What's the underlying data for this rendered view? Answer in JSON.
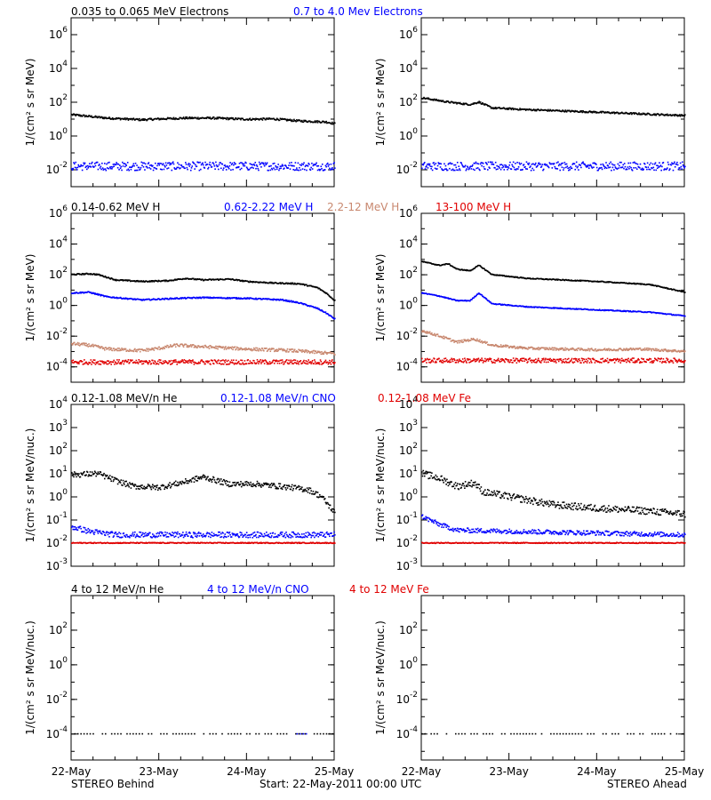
{
  "footer": {
    "left": "STEREO Behind",
    "center": "Start: 22-May-2011 00:00 UTC",
    "right": "STEREO Ahead"
  },
  "x_ticks": [
    "22-May",
    "23-May",
    "24-May",
    "25-May"
  ],
  "chart_data": [
    {
      "type": "scatter",
      "row": "electrons",
      "legend": [
        {
          "name": "0.035 to 0.065 MeV Electrons",
          "color": "#000000"
        },
        {
          "name": "0.7 to 4.0 Mev Electrons",
          "color": "#0000ff"
        }
      ],
      "ylabel": "1/(cm² s sr MeV)",
      "yscale": "log",
      "ylim_exp": [
        -3,
        7
      ],
      "ticks": [
        {
          "base": "10",
          "exp": "6",
          "e": 6
        },
        {
          "base": "10",
          "exp": "4",
          "e": 4
        },
        {
          "base": "10",
          "exp": "2",
          "e": 2
        },
        {
          "base": "10",
          "exp": "0",
          "e": 0
        },
        {
          "base": "10",
          "exp": "-2",
          "e": -2
        }
      ],
      "panels": [
        {
          "name": "STEREO Behind",
          "series": [
            {
              "color": "#000000",
              "points": [
                [
                  0,
                  1.25
                ],
                [
                  0.2,
                  1.15
                ],
                [
                  0.4,
                  1.05
                ],
                [
                  0.6,
                  1.0
                ],
                [
                  0.8,
                  0.95
                ],
                [
                  1.0,
                  1.0
                ],
                [
                  1.3,
                  1.05
                ],
                [
                  1.6,
                  1.05
                ],
                [
                  2.0,
                  0.98
                ],
                [
                  2.3,
                  1.0
                ],
                [
                  2.6,
                  0.88
                ],
                [
                  2.9,
                  0.82
                ],
                [
                  3.0,
                  0.72
                ]
              ],
              "jitter": 0.06
            },
            {
              "color": "#0000ff",
              "points": [
                [
                  0,
                  -1.8
                ],
                [
                  3,
                  -1.8
                ]
              ],
              "jitter": 0.25
            }
          ]
        },
        {
          "name": "STEREO Ahead",
          "series": [
            {
              "color": "#000000",
              "points": [
                [
                  0,
                  2.25
                ],
                [
                  0.3,
                  2.0
                ],
                [
                  0.55,
                  1.85
                ],
                [
                  0.65,
                  2.0
                ],
                [
                  0.8,
                  1.65
                ],
                [
                  1.2,
                  1.55
                ],
                [
                  2.0,
                  1.4
                ],
                [
                  3.0,
                  1.2
                ]
              ],
              "jitter": 0.05
            },
            {
              "color": "#0000ff",
              "points": [
                [
                  0,
                  -1.8
                ],
                [
                  3,
                  -1.8
                ]
              ],
              "jitter": 0.25
            }
          ]
        }
      ]
    },
    {
      "type": "scatter",
      "row": "protons",
      "legend": [
        {
          "name": "0.14-0.62 MeV H",
          "color": "#000000"
        },
        {
          "name": "0.62-2.22 MeV H",
          "color": "#0000ff"
        },
        {
          "name": "2.2-12 MeV H",
          "color": "#c8876e"
        },
        {
          "name": "13-100 MeV H",
          "color": "#e00000"
        }
      ],
      "ylabel": "1/(cm² s sr MeV)",
      "yscale": "log",
      "ylim_exp": [
        -5,
        6
      ],
      "ticks": [
        {
          "base": "10",
          "exp": "6",
          "e": 6
        },
        {
          "base": "10",
          "exp": "4",
          "e": 4
        },
        {
          "base": "10",
          "exp": "2",
          "e": 2
        },
        {
          "base": "10",
          "exp": "0",
          "e": 0
        },
        {
          "base": "10",
          "exp": "-2",
          "e": -2
        },
        {
          "base": "10",
          "exp": "-4",
          "e": -4
        }
      ],
      "panels": [
        {
          "name": "STEREO Behind",
          "series": [
            {
              "color": "#000000",
              "points": [
                [
                  0,
                  2.0
                ],
                [
                  0.2,
                  2.05
                ],
                [
                  0.3,
                  2.0
                ],
                [
                  0.5,
                  1.65
                ],
                [
                  0.8,
                  1.55
                ],
                [
                  1.1,
                  1.6
                ],
                [
                  1.3,
                  1.75
                ],
                [
                  1.5,
                  1.65
                ],
                [
                  1.8,
                  1.7
                ],
                [
                  2.0,
                  1.55
                ],
                [
                  2.3,
                  1.45
                ],
                [
                  2.6,
                  1.4
                ],
                [
                  2.8,
                  1.15
                ],
                [
                  2.9,
                  0.8
                ],
                [
                  3.0,
                  0.3
                ]
              ],
              "jitter": 0.04
            },
            {
              "color": "#0000ff",
              "points": [
                [
                  0,
                  0.8
                ],
                [
                  0.2,
                  0.85
                ],
                [
                  0.4,
                  0.55
                ],
                [
                  0.8,
                  0.35
                ],
                [
                  1.2,
                  0.45
                ],
                [
                  1.5,
                  0.5
                ],
                [
                  2.0,
                  0.45
                ],
                [
                  2.4,
                  0.35
                ],
                [
                  2.6,
                  0.15
                ],
                [
                  2.8,
                  -0.2
                ],
                [
                  2.9,
                  -0.5
                ],
                [
                  3.0,
                  -0.9
                ]
              ],
              "jitter": 0.04
            },
            {
              "color": "#c8876e",
              "points": [
                [
                  0,
                  -2.5
                ],
                [
                  0.2,
                  -2.6
                ],
                [
                  0.4,
                  -2.85
                ],
                [
                  0.8,
                  -2.95
                ],
                [
                  1.0,
                  -2.8
                ],
                [
                  1.2,
                  -2.6
                ],
                [
                  1.5,
                  -2.7
                ],
                [
                  2.0,
                  -2.85
                ],
                [
                  2.5,
                  -2.95
                ],
                [
                  3.0,
                  -3.15
                ]
              ],
              "jitter": 0.1
            },
            {
              "color": "#e00000",
              "points": [
                [
                  0,
                  -3.7
                ],
                [
                  3,
                  -3.7
                ]
              ],
              "jitter": 0.15
            }
          ]
        },
        {
          "name": "STEREO Ahead",
          "series": [
            {
              "color": "#000000",
              "points": [
                [
                  0,
                  2.85
                ],
                [
                  0.2,
                  2.6
                ],
                [
                  0.3,
                  2.7
                ],
                [
                  0.4,
                  2.35
                ],
                [
                  0.55,
                  2.25
                ],
                [
                  0.65,
                  2.6
                ],
                [
                  0.8,
                  2.0
                ],
                [
                  1.2,
                  1.75
                ],
                [
                  2.0,
                  1.55
                ],
                [
                  2.6,
                  1.35
                ],
                [
                  3.0,
                  0.85
                ]
              ],
              "jitter": 0.03
            },
            {
              "color": "#0000ff",
              "points": [
                [
                  0,
                  0.8
                ],
                [
                  0.2,
                  0.6
                ],
                [
                  0.4,
                  0.3
                ],
                [
                  0.55,
                  0.3
                ],
                [
                  0.65,
                  0.8
                ],
                [
                  0.8,
                  0.1
                ],
                [
                  1.2,
                  -0.1
                ],
                [
                  2.0,
                  -0.3
                ],
                [
                  2.6,
                  -0.45
                ],
                [
                  3.0,
                  -0.7
                ]
              ],
              "jitter": 0.03
            },
            {
              "color": "#c8876e",
              "points": [
                [
                  0,
                  -1.65
                ],
                [
                  0.2,
                  -2.0
                ],
                [
                  0.4,
                  -2.4
                ],
                [
                  0.6,
                  -2.2
                ],
                [
                  0.8,
                  -2.6
                ],
                [
                  1.2,
                  -2.8
                ],
                [
                  2.0,
                  -2.9
                ],
                [
                  2.5,
                  -2.85
                ],
                [
                  3.0,
                  -3.0
                ]
              ],
              "jitter": 0.08
            },
            {
              "color": "#e00000",
              "points": [
                [
                  0,
                  -3.6
                ],
                [
                  3,
                  -3.6
                ]
              ],
              "jitter": 0.15
            }
          ]
        }
      ]
    },
    {
      "type": "scatter",
      "row": "heavy-ions",
      "legend": [
        {
          "name": "0.12-1.08 MeV/n He",
          "color": "#000000"
        },
        {
          "name": "0.12-1.08 MeV/n CNO",
          "color": "#0000ff"
        },
        {
          "name": "0.12-1.08 MeV Fe",
          "color": "#e00000"
        }
      ],
      "ylabel": "1/(cm² s sr MeV/nuc.)",
      "yscale": "log",
      "ylim_exp": [
        -3,
        4
      ],
      "ticks": [
        {
          "base": "10",
          "exp": "4",
          "e": 4
        },
        {
          "base": "10",
          "exp": "3",
          "e": 3
        },
        {
          "base": "10",
          "exp": "2",
          "e": 2
        },
        {
          "base": "10",
          "exp": "1",
          "e": 1
        },
        {
          "base": "10",
          "exp": "0",
          "e": 0
        },
        {
          "base": "10",
          "exp": "-1",
          "e": -1
        },
        {
          "base": "10",
          "exp": "-2",
          "e": -2
        },
        {
          "base": "10",
          "exp": "-3",
          "e": -3
        }
      ],
      "panels": [
        {
          "name": "STEREO Behind",
          "series": [
            {
              "color": "#000000",
              "points": [
                [
                  0,
                  0.95
                ],
                [
                  0.3,
                  1.0
                ],
                [
                  0.5,
                  0.7
                ],
                [
                  0.7,
                  0.45
                ],
                [
                  1.0,
                  0.4
                ],
                [
                  1.3,
                  0.65
                ],
                [
                  1.5,
                  0.85
                ],
                [
                  1.8,
                  0.55
                ],
                [
                  2.1,
                  0.55
                ],
                [
                  2.5,
                  0.4
                ],
                [
                  2.7,
                  0.3
                ],
                [
                  2.85,
                  0.0
                ],
                [
                  3.0,
                  -0.7
                ]
              ],
              "jitter": 0.12
            },
            {
              "color": "#0000ff",
              "points": [
                [
                  0,
                  -1.3
                ],
                [
                  0.2,
                  -1.5
                ],
                [
                  0.5,
                  -1.65
                ],
                [
                  3,
                  -1.65
                ]
              ],
              "jitter": 0.12
            },
            {
              "color": "#e00000",
              "points": [
                [
                  0,
                  -2.0
                ],
                [
                  3,
                  -2.0
                ]
              ],
              "jitter": 0.02
            }
          ]
        },
        {
          "name": "STEREO Ahead",
          "series": [
            {
              "color": "#000000",
              "points": [
                [
                  0,
                  1.0
                ],
                [
                  0.2,
                  0.8
                ],
                [
                  0.4,
                  0.45
                ],
                [
                  0.6,
                  0.6
                ],
                [
                  0.7,
                  0.2
                ],
                [
                  1.0,
                  0.0
                ],
                [
                  1.5,
                  -0.35
                ],
                [
                  2.0,
                  -0.5
                ],
                [
                  2.5,
                  -0.6
                ],
                [
                  3.0,
                  -0.75
                ]
              ],
              "jitter": 0.15
            },
            {
              "color": "#0000ff",
              "points": [
                [
                  0,
                  -0.85
                ],
                [
                  0.2,
                  -1.2
                ],
                [
                  0.4,
                  -1.45
                ],
                [
                  3,
                  -1.65
                ]
              ],
              "jitter": 0.1
            },
            {
              "color": "#e00000",
              "points": [
                [
                  0,
                  -2.0
                ],
                [
                  3,
                  -2.0
                ]
              ],
              "jitter": 0.02
            }
          ]
        }
      ]
    },
    {
      "type": "scatter",
      "row": "high-energy-ions",
      "legend": [
        {
          "name": "4 to 12 MeV/n He",
          "color": "#000000"
        },
        {
          "name": "4 to 12 MeV/n CNO",
          "color": "#0000ff"
        },
        {
          "name": "4 to 12 MeV Fe",
          "color": "#e00000"
        }
      ],
      "ylabel": "1/(cm² s sr MeV/nuc.)",
      "yscale": "log",
      "ylim_exp": [
        -5.5,
        4
      ],
      "ticks": [
        {
          "base": "10",
          "exp": "2",
          "e": 2
        },
        {
          "base": "10",
          "exp": "0",
          "e": 0
        },
        {
          "base": "10",
          "exp": "-2",
          "e": -2
        },
        {
          "base": "10",
          "exp": "-4",
          "e": -4
        }
      ],
      "panels": [
        {
          "name": "STEREO Behind",
          "series": [
            {
              "color": "#000000",
              "points": [
                [
                  0,
                  -4.0
                ],
                [
                  3,
                  -4.0
                ]
              ],
              "jitter": 0.0,
              "sparse": true
            },
            {
              "color": "#0000ff",
              "points": [
                [
                  2.5,
                  -4.0
                ],
                [
                  2.7,
                  -4.0
                ]
              ],
              "jitter": 0.0,
              "sparse": true
            }
          ]
        },
        {
          "name": "STEREO Ahead",
          "series": [
            {
              "color": "#000000",
              "points": [
                [
                  0,
                  -4.0
                ],
                [
                  3,
                  -4.0
                ]
              ],
              "jitter": 0.0,
              "sparse": true
            }
          ]
        }
      ]
    }
  ]
}
